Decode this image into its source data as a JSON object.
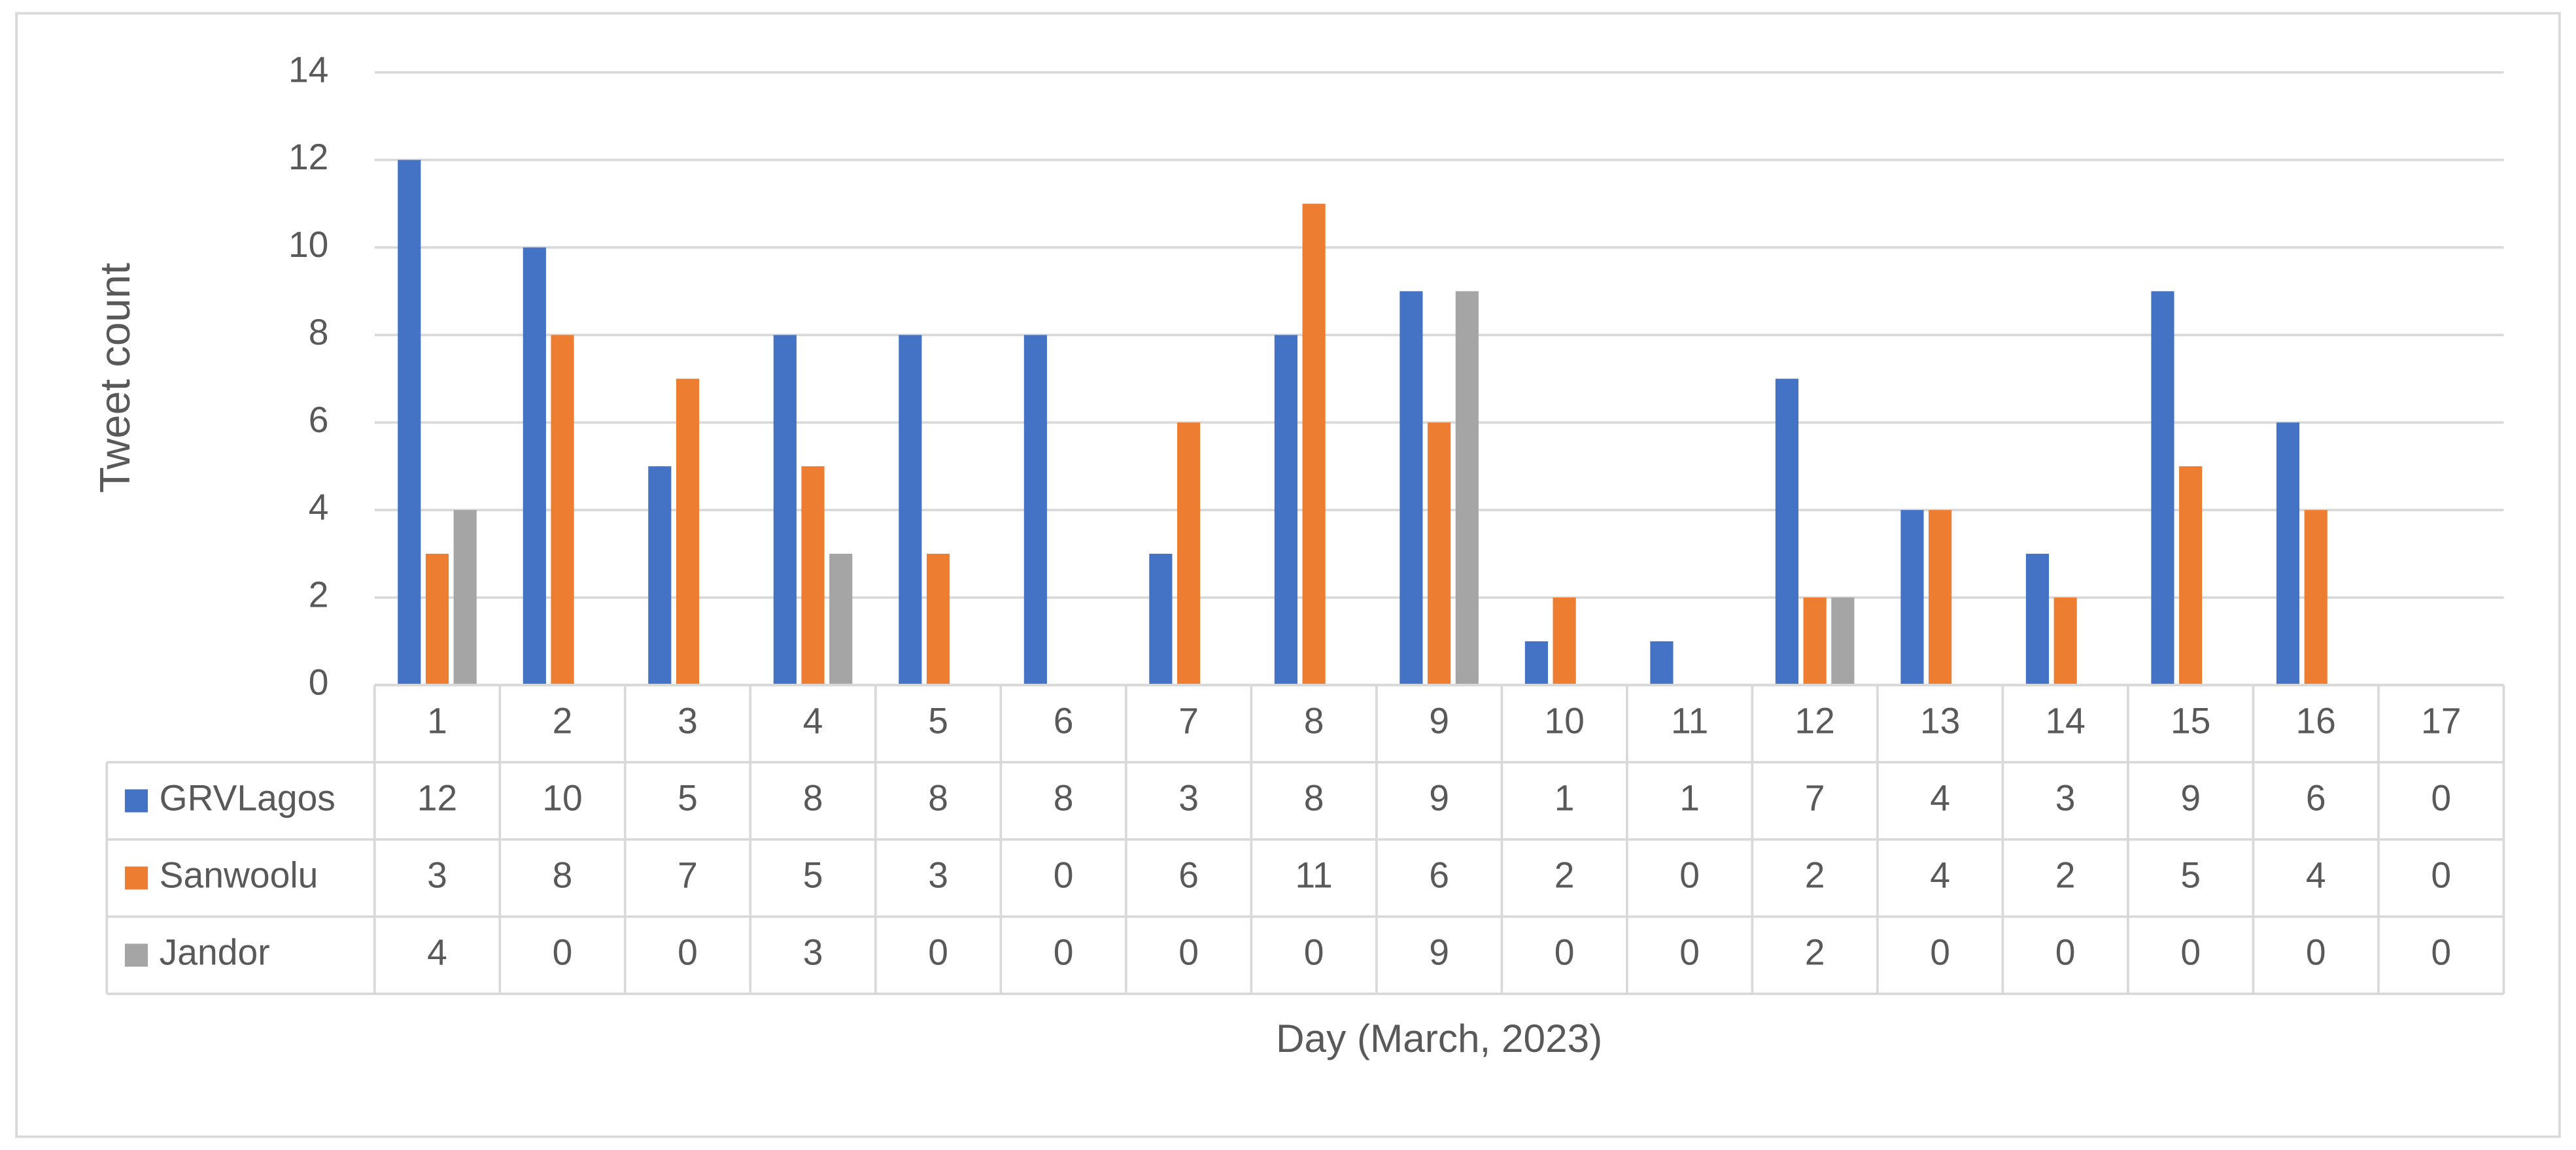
{
  "chart_data": {
    "type": "bar",
    "y_label": "Tweet count",
    "x_label": "Day (March, 2023)",
    "categories": [
      "1",
      "2",
      "3",
      "4",
      "5",
      "6",
      "7",
      "8",
      "9",
      "10",
      "11",
      "12",
      "13",
      "14",
      "15",
      "16",
      "17"
    ],
    "series": [
      {
        "name": "GRVLagos",
        "color": "#4472c4",
        "values": [
          12,
          10,
          5,
          8,
          8,
          8,
          3,
          8,
          9,
          1,
          1,
          7,
          4,
          3,
          9,
          6,
          0
        ]
      },
      {
        "name": "Sanwoolu",
        "color": "#ed7d31",
        "values": [
          3,
          8,
          7,
          5,
          3,
          0,
          6,
          11,
          6,
          2,
          0,
          2,
          4,
          2,
          5,
          4,
          0
        ]
      },
      {
        "name": "Jandor",
        "color": "#a5a5a5",
        "values": [
          4,
          0,
          0,
          3,
          0,
          0,
          0,
          0,
          9,
          0,
          0,
          2,
          0,
          0,
          0,
          0,
          0
        ]
      }
    ],
    "ylim": [
      0,
      14
    ],
    "yticks": [
      0,
      2,
      4,
      6,
      8,
      10,
      12,
      14
    ],
    "grid": true,
    "data_table": true
  }
}
